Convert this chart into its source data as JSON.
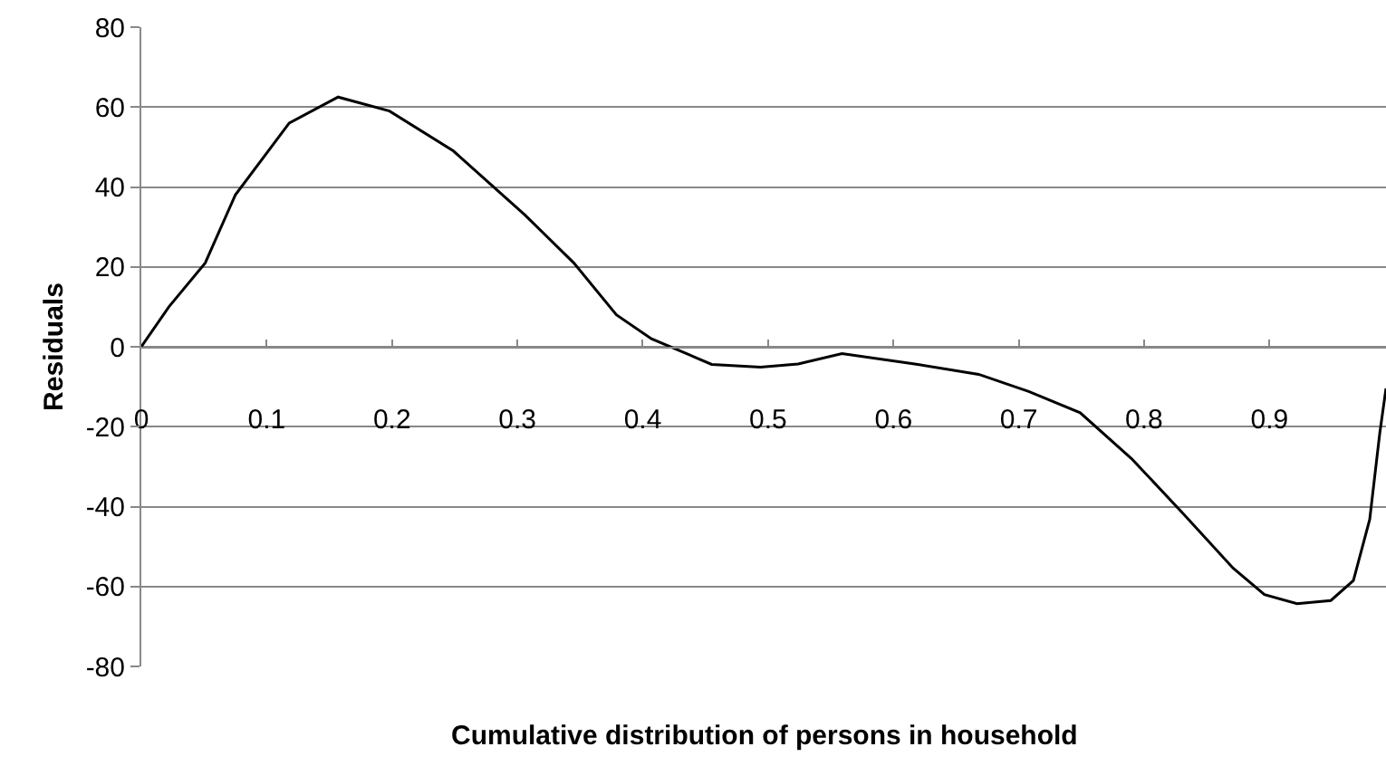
{
  "chart_data": {
    "type": "line",
    "xlabel": "Cumulative distribution of persons in household",
    "ylabel": "Residuals",
    "x": [
      0,
      0.022,
      0.051,
      0.075,
      0.118,
      0.157,
      0.198,
      0.249,
      0.306,
      0.345,
      0.379,
      0.407,
      0.455,
      0.494,
      0.524,
      0.559,
      0.617,
      0.668,
      0.708,
      0.749,
      0.79,
      0.831,
      0.871,
      0.896,
      0.922,
      0.949,
      0.967,
      0.98,
      0.988,
      0.993
    ],
    "series": [
      {
        "color": "#000000",
        "values": [
          0,
          10,
          21,
          38,
          56,
          62.5,
          59,
          49,
          33,
          21,
          8,
          2,
          -4.4,
          -5.1,
          -4.3,
          -1.7,
          -4.3,
          -6.9,
          -11.2,
          -16.5,
          -28,
          -41.7,
          -55.4,
          -62,
          -64.3,
          -63.5,
          -58.5,
          -43.2,
          -21.7,
          -10.4
        ]
      }
    ],
    "xlim": [
      0,
      0.993
    ],
    "xticks": [
      0,
      0.1,
      0.2,
      0.3,
      0.4,
      0.5,
      0.6,
      0.7,
      0.8,
      0.9
    ],
    "ylim": [
      -80,
      80
    ],
    "yticks": [
      -80,
      -60,
      -40,
      -20,
      0,
      20,
      40,
      60,
      80
    ],
    "grid": "y",
    "marker": "none",
    "line_style": "solid"
  }
}
